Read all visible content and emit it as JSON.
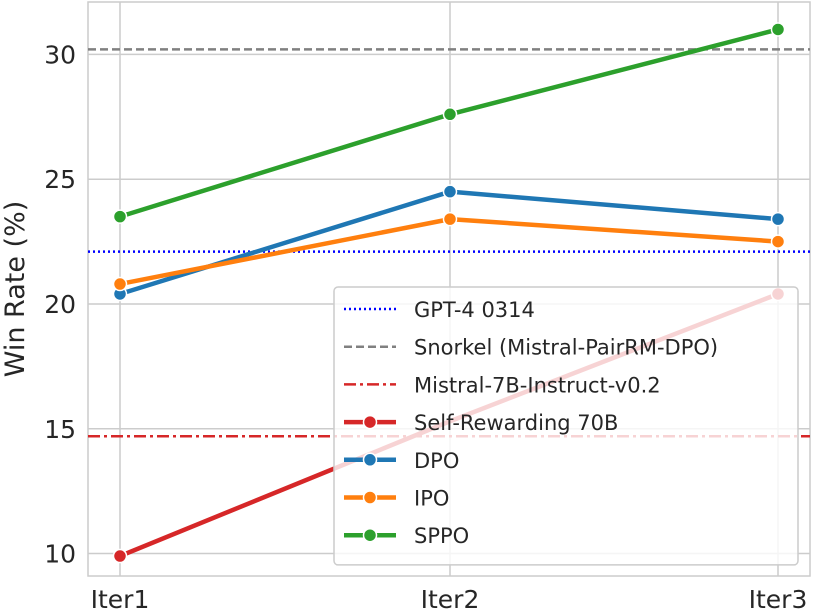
{
  "chart_data": {
    "type": "line",
    "title": "",
    "xlabel": "",
    "ylabel": "Win Rate (%)",
    "categories": [
      "Iter1",
      "Iter2",
      "Iter3"
    ],
    "ylim": [
      9.1,
      32.1
    ],
    "yticks": [
      10,
      15,
      20,
      25,
      30
    ],
    "grid": true,
    "legend_position": "lower-right",
    "reference_lines": [
      {
        "name": "GPT-4 0314",
        "value": 22.1,
        "color": "#0000ff",
        "style": "dotted"
      },
      {
        "name": "Snorkel (Mistral-PairRM-DPO)",
        "value": 30.2,
        "color": "#808080",
        "style": "dashed"
      },
      {
        "name": "Mistral-7B-Instruct-v0.2",
        "value": 14.7,
        "color": "#d62728",
        "style": "dashdot"
      }
    ],
    "series": [
      {
        "name": "Self-Rewarding 70B",
        "color": "#d62728",
        "values": [
          9.9,
          null,
          20.4
        ],
        "path": [
          9.9,
          15.3,
          20.4
        ]
      },
      {
        "name": "DPO",
        "color": "#1f77b4",
        "values": [
          20.4,
          24.5,
          23.4
        ]
      },
      {
        "name": "IPO",
        "color": "#ff7f0e",
        "values": [
          20.8,
          23.4,
          22.5
        ]
      },
      {
        "name": "SPPO",
        "color": "#2ca02c",
        "values": [
          23.5,
          27.6,
          31.0
        ]
      }
    ]
  }
}
